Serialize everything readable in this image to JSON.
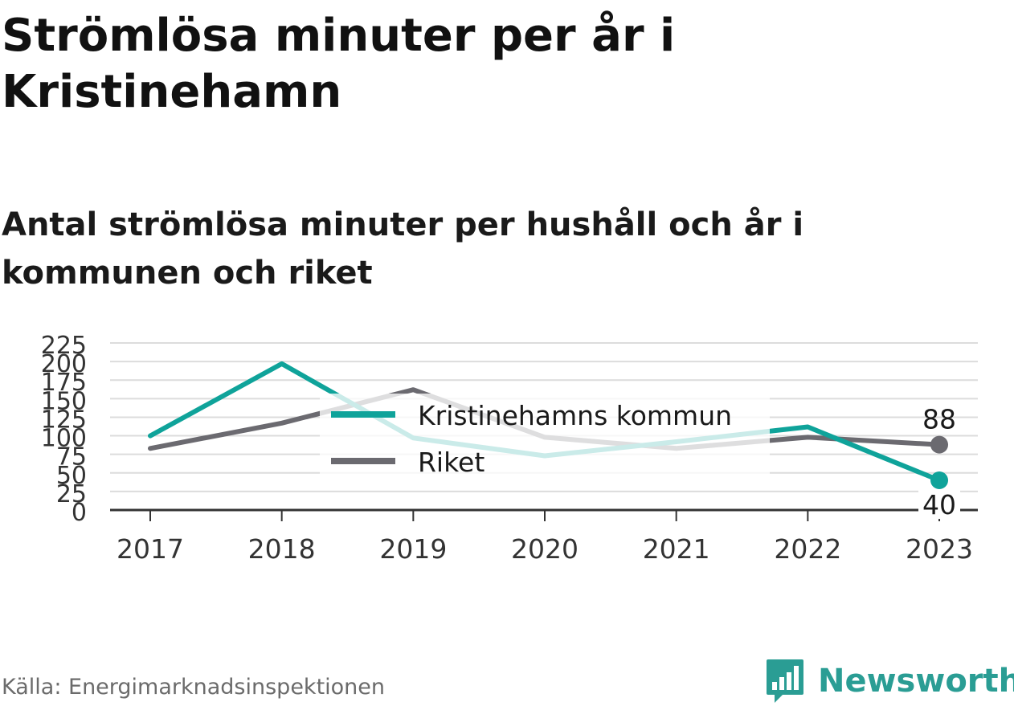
{
  "title": "Strömlösa minuter per år i Kristinehamn",
  "subtitle": "Antal strömlösa minuter per hushåll och år i kommunen och riket",
  "source": "Källa: Energimarknadsinspektionen",
  "brand": {
    "name": "Newsworthy",
    "icon": "newsworthy-logo-icon",
    "color": "#2a9d94"
  },
  "chart_data": {
    "type": "line",
    "x": [
      "2017",
      "2018",
      "2019",
      "2020",
      "2021",
      "2022",
      "2023"
    ],
    "series": [
      {
        "name": "Kristinehamns kommun",
        "color": "#0fa39a",
        "values": [
          100,
          197,
          97,
          73,
          92,
          112,
          40
        ]
      },
      {
        "name": "Riket",
        "color": "#6b6a70",
        "values": [
          83,
          117,
          162,
          98,
          83,
          98,
          88
        ]
      }
    ],
    "end_labels": [
      {
        "series": "Riket",
        "text": "88"
      },
      {
        "series": "Kristinehamns kommun",
        "text": "40"
      }
    ],
    "yticks": [
      "0",
      "25",
      "50",
      "75",
      "100",
      "125",
      "150",
      "175",
      "200",
      "225"
    ],
    "ylim": [
      0,
      225
    ],
    "grid": true,
    "legend": "center"
  }
}
